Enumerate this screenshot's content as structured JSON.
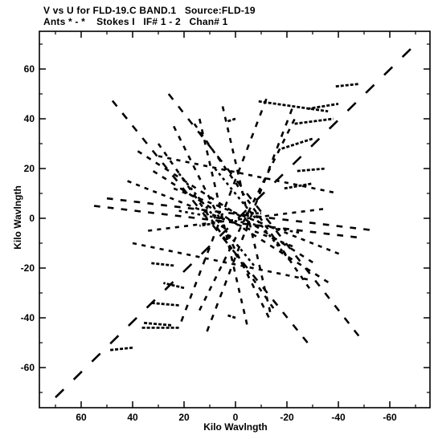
{
  "header": {
    "line1": "V vs U for FLD-19.C BAND.1   Source:FLD-19",
    "line2": "Ants * - *    Stokes I   IF# 1 - 2   Chan# 1"
  },
  "chart_data": {
    "type": "scatter",
    "title": "V vs U for FLD-19.C BAND.1   Source:FLD-19",
    "subtitle": "Ants * - *    Stokes I   IF# 1 - 2   Chan# 1",
    "xlabel": "Kilo Wavlngth",
    "ylabel": "Kilo Wavlngth",
    "xlim": [
      75,
      -75
    ],
    "ylim": [
      -75,
      75
    ],
    "x_reversed": true,
    "grid": false,
    "x_ticks": [
      60,
      40,
      20,
      0,
      -20,
      -40,
      -60
    ],
    "x_tick_labels": [
      "60",
      "40",
      "20",
      "0",
      "-20",
      "-40",
      "-60"
    ],
    "y_ticks": [
      60,
      40,
      20,
      0,
      -20,
      -40,
      -60
    ],
    "y_tick_labels": [
      "60",
      "40",
      "20",
      "0",
      "-20",
      "-40",
      "-60"
    ],
    "tracks": [
      {
        "from": [
          70,
          -72
        ],
        "to": [
          -72,
          72
        ]
      },
      {
        "from": [
          26,
          50
        ],
        "to": [
          -50,
          -50
        ]
      },
      {
        "from": [
          -28,
          -50
        ],
        "to": [
          50,
          50
        ]
      },
      {
        "from": [
          24,
          37
        ],
        "to": [
          -14,
          -42
        ]
      },
      {
        "from": [
          14,
          -37
        ],
        "to": [
          -24,
          42
        ]
      },
      {
        "from": [
          32,
          19
        ],
        "to": [
          -38,
          -27
        ]
      },
      {
        "from": [
          38,
          27
        ],
        "to": [
          -32,
          -19
        ]
      },
      {
        "from": [
          55,
          5
        ],
        "to": [
          -50,
          -8
        ]
      },
      {
        "from": [
          50,
          8
        ],
        "to": [
          -55,
          -5
        ]
      },
      {
        "from": [
          42,
          15
        ],
        "to": [
          -24,
          -12
        ]
      },
      {
        "from": [
          24,
          12
        ],
        "to": [
          -42,
          -15
        ]
      },
      {
        "from": [
          -12,
          48
        ],
        "to": [
          22,
          -44
        ]
      },
      {
        "from": [
          -22,
          44
        ],
        "to": [
          12,
          -48
        ]
      },
      {
        "from": [
          16,
          38
        ],
        "to": [
          -30,
          -30
        ]
      },
      {
        "from": [
          30,
          30
        ],
        "to": [
          -16,
          -38
        ]
      },
      {
        "from": [
          34,
          -5
        ],
        "to": [
          -36,
          4
        ]
      },
      {
        "from": [
          22,
          3
        ],
        "to": [
          -26,
          -6
        ]
      },
      {
        "from": [
          30,
          25
        ],
        "to": [
          -40,
          10
        ]
      },
      {
        "from": [
          40,
          -10
        ],
        "to": [
          -30,
          -25
        ]
      },
      {
        "from": [
          5,
          45
        ],
        "to": [
          -14,
          -40
        ]
      },
      {
        "from": [
          14,
          40
        ],
        "to": [
          -5,
          -45
        ]
      },
      {
        "from": [
          8,
          20
        ],
        "to": [
          -22,
          -18
        ]
      },
      {
        "from": [
          22,
          18
        ],
        "to": [
          -8,
          -20
        ]
      }
    ],
    "dash_segments": [
      {
        "from": [
          -9,
          47
        ],
        "to": [
          -36,
          43
        ]
      },
      {
        "from": [
          -28,
          44
        ],
        "to": [
          -40,
          46
        ]
      },
      {
        "from": [
          -39,
          53
        ],
        "to": [
          -48,
          54
        ]
      },
      {
        "from": [
          -23,
          38
        ],
        "to": [
          -38,
          40
        ]
      },
      {
        "from": [
          -18,
          28
        ],
        "to": [
          -30,
          32
        ]
      },
      {
        "from": [
          -24,
          19
        ],
        "to": [
          -35,
          20
        ]
      },
      {
        "from": [
          -19,
          12
        ],
        "to": [
          -30,
          14
        ]
      },
      {
        "from": [
          0,
          40
        ],
        "to": [
          3,
          39
        ]
      },
      {
        "from": [
          24,
          -19
        ],
        "to": [
          33,
          -18
        ]
      },
      {
        "from": [
          20,
          -28
        ],
        "to": [
          28,
          -26
        ]
      },
      {
        "from": [
          22,
          -35
        ],
        "to": [
          33,
          -34
        ]
      },
      {
        "from": [
          25,
          -43
        ],
        "to": [
          36,
          -42
        ]
      },
      {
        "from": [
          40,
          -52
        ],
        "to": [
          49,
          -53
        ]
      },
      {
        "from": [
          22,
          -44
        ],
        "to": [
          37,
          -44
        ]
      },
      {
        "from": [
          0,
          -40
        ],
        "to": [
          3,
          -39
        ]
      },
      {
        "from": [
          -4,
          2
        ],
        "to": [
          -10,
          2
        ]
      },
      {
        "from": [
          8,
          -2
        ],
        "to": [
          14,
          -3
        ]
      }
    ],
    "ticks_per_track": 20
  }
}
